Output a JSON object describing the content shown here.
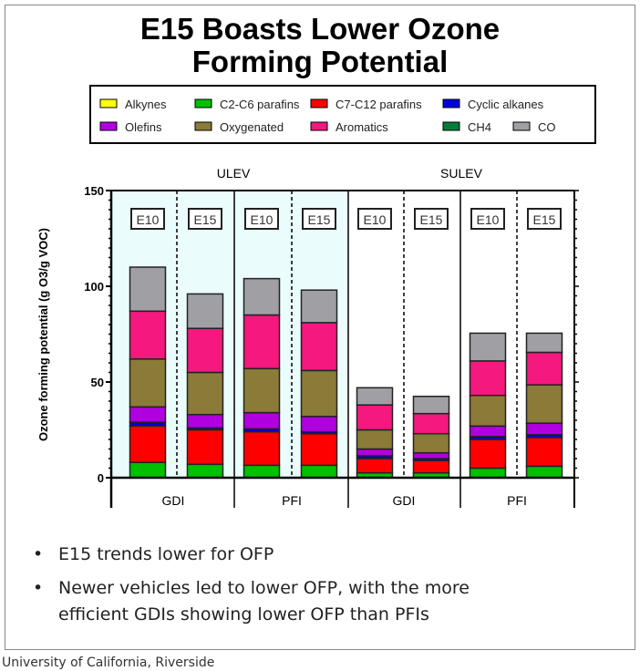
{
  "slide": {
    "title_line1": "E15 Boasts Lower Ozone",
    "title_line2": "Forming Potential",
    "bullets": [
      {
        "marker": "•",
        "text": "E15 trends lower for OFP"
      },
      {
        "marker": "•",
        "text": "Newer vehicles led to lower OFP, with the more"
      },
      {
        "marker": "",
        "text": "efficient GDIs showing lower OFP than PFIs"
      }
    ],
    "footer": "University of California, Riverside"
  },
  "chart_data": {
    "type": "bar",
    "stacked": true,
    "ylabel": "Ozone forming potential (g O3/g VOC)",
    "ylim": [
      0,
      150
    ],
    "yticks": [
      "0",
      "50",
      "100",
      "150"
    ],
    "legend_position": "top",
    "groups": [
      "ULEV",
      "SULEV"
    ],
    "subgroups": [
      "GDI",
      "PFI",
      "GDI",
      "PFI"
    ],
    "categories": [
      "E10",
      "E15",
      "E10",
      "E15",
      "E10",
      "E15",
      "E10",
      "E15"
    ],
    "series": [
      {
        "name": "Alkynes",
        "color": "#ffff00",
        "values": [
          0,
          0,
          0,
          0,
          0,
          0,
          0,
          0
        ]
      },
      {
        "name": "C2-C6 parafins",
        "color": "#00c000",
        "values": [
          8,
          7,
          6.5,
          6.5,
          2.5,
          2.5,
          5,
          6
        ]
      },
      {
        "name": "C7-C12 parafins",
        "color": "#ff0000",
        "values": [
          19,
          18,
          17.5,
          16.5,
          7.5,
          6.5,
          15,
          15
        ]
      },
      {
        "name": "Cyclic alkanes",
        "color": "#0000e0",
        "values": [
          2,
          1,
          1.5,
          1,
          1.5,
          1,
          1.5,
          1.5
        ]
      },
      {
        "name": "Olefins",
        "color": "#b000e0",
        "values": [
          8,
          7,
          8.5,
          8,
          3.5,
          3,
          5.5,
          6
        ]
      },
      {
        "name": "Oxygenated",
        "color": "#8b7b38",
        "values": [
          25,
          22,
          23,
          24,
          10,
          10,
          16,
          20
        ]
      },
      {
        "name": "Aromatics",
        "color": "#f5187e",
        "values": [
          25,
          23,
          28,
          25,
          13,
          10.5,
          18,
          17
        ]
      },
      {
        "name": "CH4",
        "color": "#0a7a3a",
        "values": [
          0,
          0,
          0,
          0,
          0,
          0,
          0,
          0
        ]
      },
      {
        "name": "CO",
        "color": "#a0a0a4",
        "values": [
          23,
          18,
          19,
          17,
          9,
          9,
          14.5,
          10
        ]
      }
    ]
  }
}
